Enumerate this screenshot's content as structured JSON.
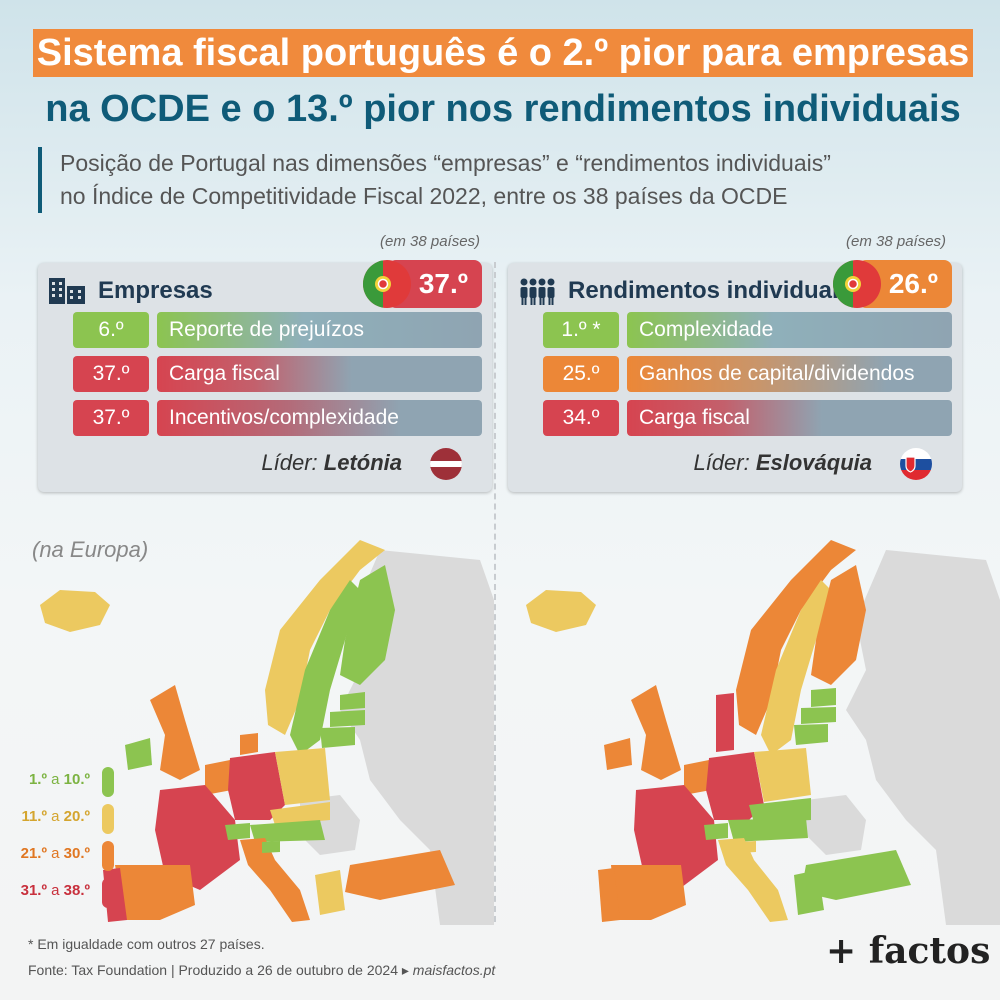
{
  "title_line1": "Sistema fiscal português é o 2.º pior para empresas",
  "title_line2": "na OCDE e o 13.º pior nos rendimentos individuais",
  "subtitle_line1": "Posição de Portugal nas dimensões “empresas” e “rendimentos individuais”",
  "subtitle_line2": "no Índice de Competitividade Fiscal 2022, entre os 38 países da OCDE",
  "colors": {
    "rank_1_10": "#8cc450",
    "rank_11_20": "#ecc960",
    "rank_21_30": "#ec8737",
    "rank_31_38": "#d64450",
    "title_bg": "#f08a3c",
    "title_text": "#0f5b78",
    "non_oecd": "#dadada"
  },
  "panels": {
    "empresas": {
      "count_note": "(em 38 países)",
      "icon": "building-icon",
      "title": "Empresas",
      "portugal_rank": "37.º",
      "rows": [
        {
          "rank": "6.º",
          "label": "Reporte de prejuízos"
        },
        {
          "rank": "37.º",
          "label": "Carga fiscal"
        },
        {
          "rank": "37.º",
          "label": "Incentivos/complexidade"
        }
      ],
      "leader_label": "Líder:",
      "leader_name": "Letónia",
      "leader_flag": "latvia-flag-icon"
    },
    "rendimentos": {
      "count_note": "(em 38 países)",
      "icon": "people-icon",
      "title": "Rendimentos individuais",
      "portugal_rank": "26.º",
      "rows": [
        {
          "rank": "1.º *",
          "label": "Complexidade"
        },
        {
          "rank": "25.º",
          "label": "Ganhos de capital/dividendos"
        },
        {
          "rank": "34.º",
          "label": "Carga fiscal"
        }
      ],
      "leader_label": "Líder:",
      "leader_name": "Eslováquia",
      "leader_flag": "slovakia-flag-icon"
    }
  },
  "map_note": "(na Europa)",
  "legend": [
    {
      "from": "1.º",
      "sep": "a",
      "to": "10.º"
    },
    {
      "from": "11.º",
      "sep": "a",
      "to": "20.º"
    },
    {
      "from": "21.º",
      "sep": "a",
      "to": "30.º"
    },
    {
      "from": "31.º",
      "sep": "a",
      "to": "38.º"
    }
  ],
  "footnote": "* Em igualdade com outros 27 países.",
  "source_text": "Fonte: Tax Foundation | Produzido a 26 de outubro de 2024 ▸",
  "source_site": "maisfactos.pt",
  "logo": "+ factos"
}
